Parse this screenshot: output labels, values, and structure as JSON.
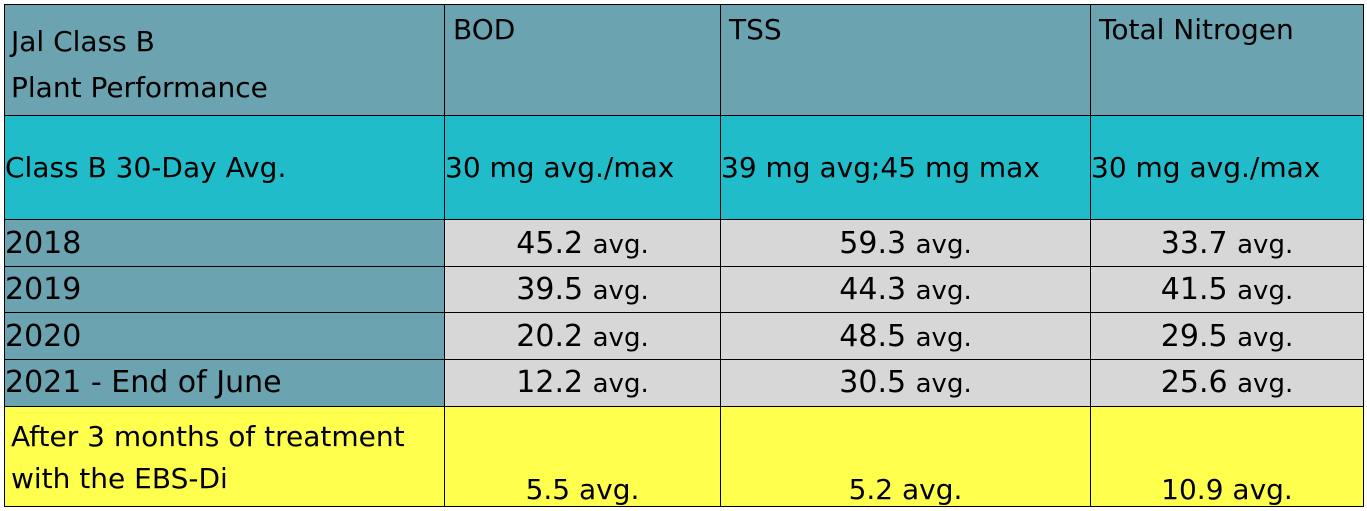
{
  "table": {
    "title_line1": "Jal Class B",
    "title_line2": "Plant Performance",
    "columns": [
      "BOD",
      "TSS",
      "Total Nitrogen"
    ],
    "standard": {
      "label": "Class B 30-Day Avg.",
      "values": [
        "30 mg avg./max",
        "39 mg avg;45 mg max",
        "30 mg avg./max"
      ]
    },
    "rows": [
      {
        "year": "2018",
        "values": [
          "45.2",
          "59.3",
          "33.7"
        ]
      },
      {
        "year": "2019",
        "values": [
          "39.5",
          "44.3",
          "41.5"
        ]
      },
      {
        "year": "2020",
        "values": [
          "20.2",
          "48.5",
          "29.5"
        ]
      },
      {
        "year": "2021 - End of June",
        "values": [
          "12.2",
          "30.5",
          "25.6"
        ]
      }
    ],
    "unit": "avg.",
    "treatment": {
      "label_line1": "After 3 months of treatment",
      "label_line2": "with the EBS-Di",
      "values": [
        "5.5 avg.",
        "5.2 avg.",
        "10.9 avg."
      ]
    },
    "colors": {
      "header_bg": "#6ba3b1",
      "standard_bg": "#21bcc9",
      "data_bg": "#d7d7d7",
      "treatment_bg": "#ffff4d"
    }
  }
}
